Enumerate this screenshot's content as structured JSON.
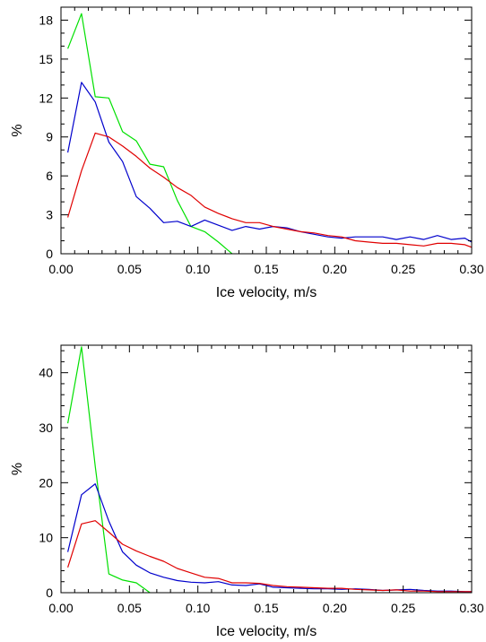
{
  "chart_data": [
    {
      "type": "line",
      "xlabel": "Ice velocity, m/s",
      "ylabel": "%",
      "xlim": [
        0,
        0.3
      ],
      "ylim": [
        0,
        19
      ],
      "xticks": [
        0.0,
        0.05,
        0.1,
        0.15,
        0.2,
        0.25,
        0.3
      ],
      "xtick_labels": [
        "0.00",
        "0.05",
        "0.10",
        "0.15",
        "0.20",
        "0.25",
        "0.30"
      ],
      "yticks": [
        0,
        3,
        6,
        9,
        12,
        15,
        18
      ],
      "ytick_labels": [
        "0",
        "3",
        "6",
        "9",
        "12",
        "15",
        "18"
      ],
      "grid": false,
      "series": [
        {
          "color": "#00e000",
          "x": [
            0.005,
            0.015,
            0.025,
            0.035,
            0.045,
            0.055,
            0.065,
            0.075,
            0.085,
            0.095,
            0.105,
            0.115,
            0.125
          ],
          "y": [
            15.8,
            18.5,
            12.1,
            12.0,
            9.4,
            8.7,
            6.9,
            6.7,
            4.1,
            2.1,
            1.7,
            0.9,
            0.0
          ]
        },
        {
          "color": "#0000cc",
          "x": [
            0.005,
            0.015,
            0.025,
            0.035,
            0.045,
            0.055,
            0.065,
            0.075,
            0.085,
            0.095,
            0.105,
            0.115,
            0.125,
            0.135,
            0.145,
            0.155,
            0.165,
            0.175,
            0.185,
            0.195,
            0.205,
            0.215,
            0.225,
            0.235,
            0.245,
            0.255,
            0.265,
            0.275,
            0.285,
            0.295,
            0.3
          ],
          "y": [
            7.8,
            13.2,
            11.7,
            8.6,
            7.1,
            4.4,
            3.5,
            2.4,
            2.5,
            2.1,
            2.6,
            2.2,
            1.8,
            2.1,
            1.9,
            2.1,
            2.0,
            1.7,
            1.5,
            1.3,
            1.2,
            1.3,
            1.3,
            1.3,
            1.1,
            1.3,
            1.1,
            1.4,
            1.1,
            1.2,
            0.9
          ]
        },
        {
          "color": "#e00000",
          "x": [
            0.005,
            0.015,
            0.025,
            0.035,
            0.045,
            0.055,
            0.065,
            0.075,
            0.085,
            0.095,
            0.105,
            0.115,
            0.125,
            0.135,
            0.145,
            0.155,
            0.165,
            0.175,
            0.185,
            0.195,
            0.205,
            0.215,
            0.225,
            0.235,
            0.245,
            0.255,
            0.265,
            0.275,
            0.285,
            0.295,
            0.3
          ],
          "y": [
            2.8,
            6.4,
            9.3,
            9.0,
            8.3,
            7.5,
            6.6,
            5.9,
            5.1,
            4.5,
            3.6,
            3.1,
            2.7,
            2.4,
            2.4,
            2.1,
            1.9,
            1.7,
            1.6,
            1.4,
            1.3,
            1.0,
            0.9,
            0.8,
            0.8,
            0.7,
            0.6,
            0.8,
            0.8,
            0.7,
            0.5
          ]
        }
      ]
    },
    {
      "type": "line",
      "xlabel": "Ice velocity, m/s",
      "ylabel": "%",
      "xlim": [
        0,
        0.3
      ],
      "ylim": [
        0,
        45
      ],
      "xticks": [
        0.0,
        0.05,
        0.1,
        0.15,
        0.2,
        0.25,
        0.3
      ],
      "xtick_labels": [
        "0.00",
        "0.05",
        "0.10",
        "0.15",
        "0.20",
        "0.25",
        "0.30"
      ],
      "yticks": [
        0,
        10,
        20,
        30,
        40
      ],
      "ytick_labels": [
        "0",
        "10",
        "20",
        "30",
        "40"
      ],
      "grid": false,
      "series": [
        {
          "color": "#00e000",
          "x": [
            0.005,
            0.015,
            0.025,
            0.035,
            0.045,
            0.055,
            0.065
          ],
          "y": [
            30.8,
            44.7,
            23.0,
            3.4,
            2.3,
            1.8,
            0.0
          ]
        },
        {
          "color": "#0000cc",
          "x": [
            0.005,
            0.015,
            0.025,
            0.035,
            0.045,
            0.055,
            0.065,
            0.075,
            0.085,
            0.095,
            0.105,
            0.115,
            0.125,
            0.135,
            0.145,
            0.155,
            0.165,
            0.175,
            0.185,
            0.195,
            0.205,
            0.215,
            0.225,
            0.235,
            0.245,
            0.255,
            0.265,
            0.275,
            0.285,
            0.295,
            0.3
          ],
          "y": [
            7.4,
            17.8,
            19.8,
            13.0,
            7.4,
            5.0,
            3.6,
            2.8,
            2.2,
            1.9,
            1.8,
            2.0,
            1.4,
            1.3,
            1.6,
            1.0,
            0.9,
            0.8,
            0.7,
            0.7,
            0.6,
            0.7,
            0.6,
            0.4,
            0.5,
            0.6,
            0.4,
            0.3,
            0.3,
            0.2,
            0.2
          ]
        },
        {
          "color": "#e00000",
          "x": [
            0.005,
            0.015,
            0.025,
            0.035,
            0.045,
            0.055,
            0.065,
            0.075,
            0.085,
            0.095,
            0.105,
            0.115,
            0.125,
            0.135,
            0.145,
            0.155,
            0.165,
            0.175,
            0.185,
            0.195,
            0.205,
            0.215,
            0.225,
            0.235,
            0.245,
            0.255,
            0.265,
            0.275,
            0.285,
            0.295,
            0.3
          ],
          "y": [
            4.6,
            12.5,
            13.1,
            11.0,
            8.8,
            7.6,
            6.6,
            5.7,
            4.4,
            3.6,
            2.8,
            2.6,
            1.8,
            1.8,
            1.7,
            1.3,
            1.1,
            1.0,
            0.9,
            0.8,
            0.8,
            0.6,
            0.5,
            0.4,
            0.5,
            0.3,
            0.3,
            0.2,
            0.2,
            0.2,
            0.2
          ]
        }
      ]
    }
  ]
}
